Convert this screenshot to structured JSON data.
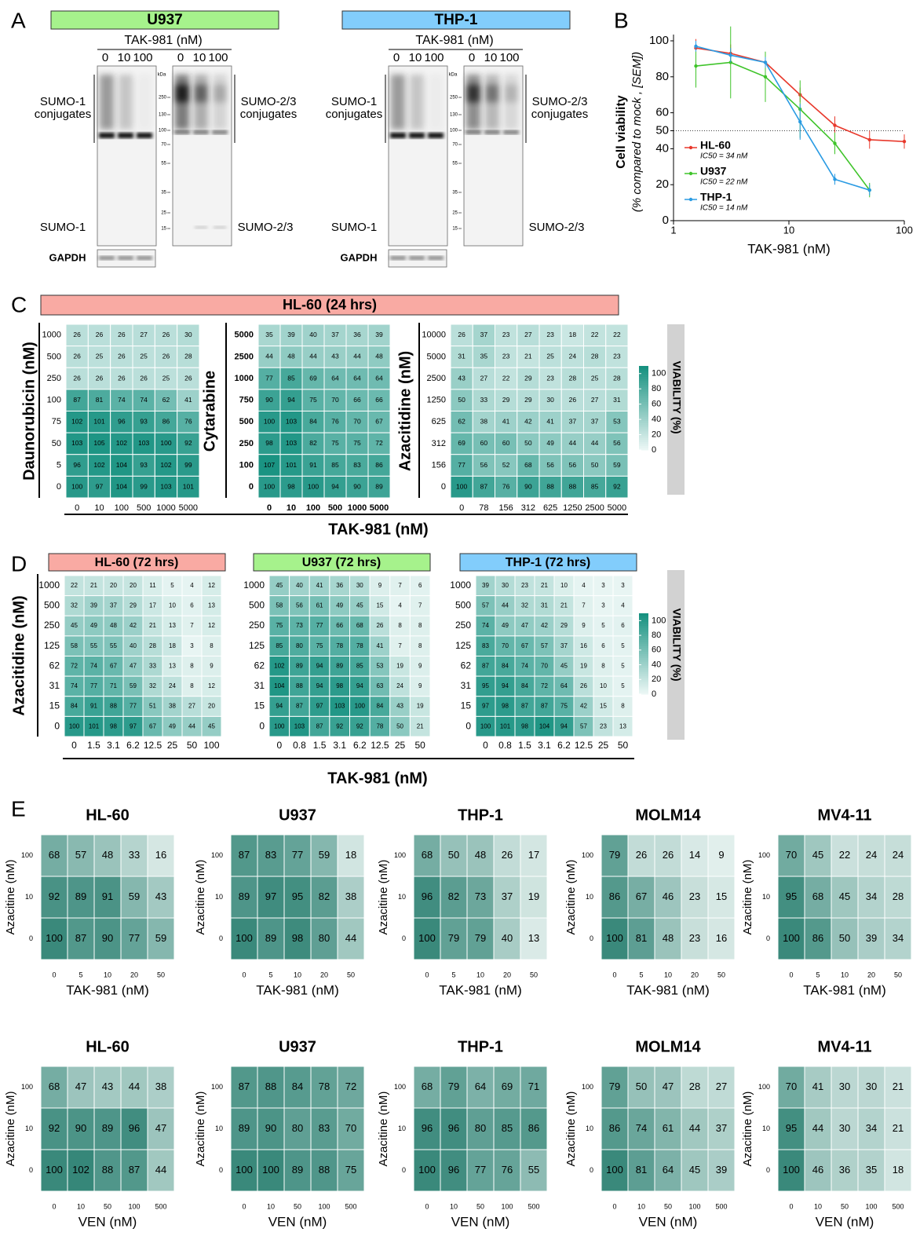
{
  "panel_labels": [
    "A",
    "B",
    "C",
    "D",
    "E"
  ],
  "blots": {
    "treatment": "TAK-981 (nM)",
    "lanes": [
      "0",
      "10",
      "100"
    ],
    "kda_unit": "kDa",
    "kda_markers": [
      "250",
      "130",
      "100",
      "70",
      "55",
      "35",
      "25",
      "15"
    ],
    "sumo1_conjugates": [
      "SUMO-1",
      "conjugates"
    ],
    "sumo23_conjugates": [
      "SUMO-2/3",
      "conjugates"
    ],
    "sumo1": "SUMO-1",
    "sumo23": "SUMO-2/3",
    "loading_control": "GAPDH",
    "cell_lines": [
      {
        "name": "U937",
        "color": "#a6f28c"
      },
      {
        "name": "THP-1",
        "color": "#82cdfc"
      }
    ]
  },
  "panel_c": {
    "title": "HL-60 (24 hrs)",
    "color": "#f9aaa3",
    "xlabel": "TAK-981 (nM)",
    "colorbar": {
      "label": "VIABILITY (%)",
      "range": [
        0,
        110
      ],
      "ticks": [
        0,
        20,
        40,
        60,
        80,
        100
      ],
      "colors": [
        "#eef8f6",
        "#14907f"
      ]
    }
  },
  "panel_d": {
    "ylabel": "Azacitidine (nM)",
    "xlabel": "TAK-981 (nM)",
    "colorbar": {
      "label": "VIABILITY (%)",
      "range": [
        0,
        110
      ],
      "ticks": [
        0,
        20,
        40,
        60,
        80,
        100
      ],
      "colors": [
        "#eef8f6",
        "#14907f"
      ]
    }
  },
  "panel_e": {
    "range": [
      0,
      100
    ],
    "colors": [
      "#f2f9f7",
      "#3a897b"
    ]
  },
  "chart_data": [
    {
      "type": "line",
      "xlabel": "TAK-981 (nM)",
      "ylabel": [
        "Cell viability",
        "(% compared to mock , [SEM])"
      ],
      "x": [
        1.5625,
        3.125,
        6.25,
        12.5,
        25,
        50,
        100
      ],
      "xscale": "log",
      "xlim": [
        1,
        100
      ],
      "xticks": [
        1,
        10,
        100
      ],
      "ylim": [
        0,
        100
      ],
      "yticks": [
        0,
        20,
        40,
        50,
        60,
        80,
        100
      ],
      "hline": 50,
      "series": [
        {
          "name": "HL-60",
          "color": "#e8382b",
          "ic50_label": "IC50 = 34 nM",
          "values": [
            96,
            93,
            88,
            70,
            53,
            45,
            44
          ],
          "errors": [
            5,
            5,
            5,
            4,
            5,
            5,
            4
          ]
        },
        {
          "name": "U937",
          "color": "#3fc42a",
          "ic50_label": "IC50 = 22 nM",
          "values": [
            86,
            88,
            80,
            62,
            43,
            17,
            null
          ],
          "errors": [
            12,
            20,
            14,
            16,
            6,
            4,
            null
          ]
        },
        {
          "name": "THP-1",
          "color": "#2a9be3",
          "ic50_label": "IC50 = 14 nM",
          "values": [
            97,
            92,
            88,
            55,
            23,
            17,
            null
          ],
          "errors": [
            3,
            4,
            3,
            10,
            3,
            3,
            null
          ]
        }
      ]
    },
    {
      "type": "heatmap",
      "ylabel": "Daunorubicin (nM)",
      "rows": [
        "1000",
        "500",
        "250",
        "100",
        "75",
        "50",
        "5",
        "0"
      ],
      "columns": [
        "0",
        "10",
        "100",
        "500",
        "1000",
        "5000"
      ],
      "values": [
        [
          26,
          26,
          26,
          27,
          26,
          30
        ],
        [
          26,
          25,
          26,
          25,
          26,
          28
        ],
        [
          26,
          26,
          26,
          26,
          25,
          26
        ],
        [
          87,
          81,
          74,
          74,
          62,
          41
        ],
        [
          102,
          101,
          96,
          93,
          86,
          76
        ],
        [
          103,
          105,
          102,
          103,
          100,
          92
        ],
        [
          96,
          102,
          104,
          93,
          102,
          99
        ],
        [
          100,
          97,
          104,
          99,
          103,
          101
        ]
      ]
    },
    {
      "type": "heatmap",
      "ylabel": "Cytarabine",
      "rows": [
        "5000",
        "2500",
        "1000",
        "750",
        "500",
        "250",
        "100",
        "0"
      ],
      "columns": [
        "0",
        "10",
        "100",
        "500",
        "1000",
        "5000"
      ],
      "values": [
        [
          35,
          39,
          40,
          37,
          36,
          39
        ],
        [
          44,
          48,
          44,
          43,
          44,
          48
        ],
        [
          77,
          85,
          69,
          64,
          64,
          64
        ],
        [
          90,
          94,
          75,
          70,
          66,
          66
        ],
        [
          100,
          103,
          84,
          76,
          70,
          67
        ],
        [
          98,
          103,
          82,
          75,
          75,
          72
        ],
        [
          107,
          101,
          91,
          85,
          83,
          86
        ],
        [
          100,
          98,
          100,
          94,
          90,
          89
        ]
      ]
    },
    {
      "type": "heatmap",
      "ylabel": "Azacitidine (nM)",
      "rows": [
        "10000",
        "5000",
        "2500",
        "1250",
        "625",
        "312",
        "156",
        "0"
      ],
      "columns": [
        "0",
        "78",
        "156",
        "312",
        "625",
        "1250",
        "2500",
        "5000"
      ],
      "values": [
        [
          26,
          37,
          23,
          27,
          23,
          18,
          22,
          22
        ],
        [
          31,
          35,
          23,
          21,
          25,
          24,
          28,
          23
        ],
        [
          43,
          27,
          22,
          29,
          23,
          28,
          25,
          28
        ],
        [
          50,
          33,
          29,
          29,
          30,
          26,
          27,
          31
        ],
        [
          62,
          38,
          41,
          42,
          41,
          37,
          37,
          53
        ],
        [
          69,
          60,
          60,
          50,
          49,
          44,
          44,
          56
        ],
        [
          77,
          56,
          52,
          68,
          56,
          56,
          50,
          59
        ],
        [
          100,
          87,
          76,
          90,
          88,
          88,
          85,
          92
        ]
      ]
    },
    {
      "type": "heatmap",
      "title": "HL-60 (72 hrs)",
      "header_color": "#f9aaa3",
      "rows": [
        "1000",
        "500",
        "250",
        "125",
        "62",
        "31",
        "15",
        "0"
      ],
      "columns": [
        "0",
        "1.5",
        "3.1",
        "6.2",
        "12.5",
        "25",
        "50",
        "100"
      ],
      "values": [
        [
          22,
          21,
          20,
          20,
          11,
          5,
          4,
          12
        ],
        [
          32,
          39,
          37,
          29,
          17,
          10,
          6,
          13
        ],
        [
          45,
          49,
          48,
          42,
          21,
          13,
          7,
          12
        ],
        [
          58,
          55,
          55,
          40,
          28,
          18,
          3,
          8
        ],
        [
          72,
          74,
          67,
          47,
          33,
          13,
          8,
          9
        ],
        [
          74,
          77,
          71,
          59,
          32,
          24,
          8,
          12
        ],
        [
          84,
          91,
          88,
          77,
          51,
          38,
          27,
          20
        ],
        [
          100,
          101,
          98,
          97,
          67,
          49,
          44,
          45
        ]
      ]
    },
    {
      "type": "heatmap",
      "title": "U937 (72 hrs)",
      "header_color": "#a6f28c",
      "rows": [
        "1000",
        "500",
        "250",
        "125",
        "62",
        "31",
        "15",
        "0"
      ],
      "columns": [
        "0",
        "0.8",
        "1.5",
        "3.1",
        "6.2",
        "12.5",
        "25",
        "50"
      ],
      "values": [
        [
          45,
          40,
          41,
          36,
          30,
          9,
          7,
          6
        ],
        [
          58,
          56,
          61,
          49,
          45,
          15,
          4,
          7
        ],
        [
          75,
          73,
          77,
          66,
          68,
          26,
          8,
          8
        ],
        [
          85,
          80,
          75,
          78,
          78,
          41,
          7,
          8
        ],
        [
          102,
          89,
          94,
          89,
          85,
          53,
          19,
          9
        ],
        [
          104,
          88,
          94,
          98,
          94,
          63,
          24,
          9
        ],
        [
          94,
          87,
          97,
          103,
          100,
          84,
          43,
          19
        ],
        [
          100,
          103,
          87,
          92,
          92,
          78,
          50,
          21
        ]
      ]
    },
    {
      "type": "heatmap",
      "title": "THP-1 (72 hrs)",
      "header_color": "#82cdfc",
      "rows": [
        "1000",
        "500",
        "250",
        "125",
        "62",
        "31",
        "15",
        "0"
      ],
      "columns": [
        "0",
        "0.8",
        "1.5",
        "3.1",
        "6.2",
        "12.5",
        "25",
        "50"
      ],
      "values": [
        [
          39,
          30,
          23,
          21,
          10,
          4,
          3,
          3
        ],
        [
          57,
          44,
          32,
          31,
          21,
          7,
          3,
          4
        ],
        [
          74,
          49,
          47,
          42,
          29,
          9,
          5,
          6
        ],
        [
          83,
          70,
          67,
          57,
          37,
          16,
          6,
          5
        ],
        [
          87,
          84,
          74,
          70,
          45,
          19,
          8,
          5
        ],
        [
          95,
          94,
          84,
          72,
          64,
          26,
          10,
          5
        ],
        [
          97,
          98,
          87,
          87,
          75,
          42,
          15,
          8
        ],
        [
          100,
          101,
          98,
          104,
          94,
          57,
          23,
          13
        ]
      ]
    },
    {
      "type": "heatmap",
      "title": "HL-60",
      "ylabel": "Azacitine (nM)",
      "xlabel": "TAK-981 (nM)",
      "rows": [
        "100",
        "10",
        "0"
      ],
      "columns": [
        "0",
        "5",
        "10",
        "20",
        "50"
      ],
      "values": [
        [
          68,
          57,
          48,
          33,
          16
        ],
        [
          92,
          89,
          91,
          59,
          43
        ],
        [
          100,
          87,
          90,
          77,
          59
        ]
      ]
    },
    {
      "type": "heatmap",
      "title": "U937",
      "ylabel": "Azacitine (nM)",
      "xlabel": "TAK-981 (nM)",
      "rows": [
        "100",
        "10",
        "0"
      ],
      "columns": [
        "0",
        "5",
        "10",
        "20",
        "50"
      ],
      "values": [
        [
          87,
          83,
          77,
          59,
          18
        ],
        [
          89,
          97,
          95,
          82,
          38
        ],
        [
          100,
          89,
          98,
          80,
          44
        ]
      ]
    },
    {
      "type": "heatmap",
      "title": "THP-1",
      "ylabel": "Azacitine (nM)",
      "xlabel": "TAK-981 (nM)",
      "rows": [
        "100",
        "10",
        "0"
      ],
      "columns": [
        "0",
        "5",
        "10",
        "20",
        "50"
      ],
      "values": [
        [
          68,
          50,
          48,
          26,
          17
        ],
        [
          96,
          82,
          73,
          37,
          19
        ],
        [
          100,
          79,
          79,
          40,
          13
        ]
      ]
    },
    {
      "type": "heatmap",
      "title": "MOLM14",
      "ylabel": "Azacitine (nM)",
      "xlabel": "TAK-981 (nM)",
      "rows": [
        "100",
        "10",
        "0"
      ],
      "columns": [
        "0",
        "5",
        "10",
        "20",
        "50"
      ],
      "values": [
        [
          79,
          26,
          26,
          14,
          9
        ],
        [
          86,
          67,
          46,
          23,
          15
        ],
        [
          100,
          81,
          48,
          23,
          16
        ]
      ]
    },
    {
      "type": "heatmap",
      "title": "MV4-11",
      "ylabel": "Azacitine (nM)",
      "xlabel": "TAK-981 (nM)",
      "rows": [
        "100",
        "10",
        "0"
      ],
      "columns": [
        "0",
        "5",
        "10",
        "20",
        "50"
      ],
      "values": [
        [
          70,
          45,
          22,
          24,
          24
        ],
        [
          95,
          68,
          45,
          34,
          28
        ],
        [
          100,
          86,
          50,
          39,
          34
        ]
      ]
    },
    {
      "type": "heatmap",
      "title": "HL-60",
      "ylabel": "Azacitine (nM)",
      "xlabel": "VEN (nM)",
      "rows": [
        "100",
        "10",
        "0"
      ],
      "columns": [
        "0",
        "10",
        "50",
        "100",
        "500"
      ],
      "values": [
        [
          68,
          47,
          43,
          44,
          38
        ],
        [
          92,
          90,
          89,
          96,
          47
        ],
        [
          100,
          102,
          88,
          87,
          44
        ]
      ]
    },
    {
      "type": "heatmap",
      "title": "U937",
      "ylabel": "Azacitine (nM)",
      "xlabel": "VEN (nM)",
      "rows": [
        "100",
        "10",
        "0"
      ],
      "columns": [
        "0",
        "10",
        "50",
        "100",
        "500"
      ],
      "values": [
        [
          87,
          88,
          84,
          78,
          72
        ],
        [
          89,
          90,
          80,
          83,
          70
        ],
        [
          100,
          100,
          89,
          88,
          75
        ]
      ]
    },
    {
      "type": "heatmap",
      "title": "THP-1",
      "ylabel": "Azacitine (nM)",
      "xlabel": "VEN (nM)",
      "rows": [
        "100",
        "10",
        "0"
      ],
      "columns": [
        "0",
        "10",
        "50",
        "100",
        "500"
      ],
      "values": [
        [
          68,
          79,
          64,
          69,
          71
        ],
        [
          96,
          96,
          80,
          85,
          86
        ],
        [
          100,
          96,
          77,
          76,
          55
        ]
      ]
    },
    {
      "type": "heatmap",
      "title": "MOLM14",
      "ylabel": "Azacitine (nM)",
      "xlabel": "VEN (nM)",
      "rows": [
        "100",
        "10",
        "0"
      ],
      "columns": [
        "0",
        "10",
        "50",
        "100",
        "500"
      ],
      "values": [
        [
          79,
          50,
          47,
          28,
          27
        ],
        [
          86,
          74,
          61,
          44,
          37
        ],
        [
          100,
          81,
          64,
          45,
          39
        ]
      ]
    },
    {
      "type": "heatmap",
      "title": "MV4-11",
      "ylabel": "Azacitine (nM)",
      "xlabel": "VEN (nM)",
      "rows": [
        "100",
        "10",
        "0"
      ],
      "columns": [
        "0",
        "10",
        "50",
        "100",
        "500"
      ],
      "values": [
        [
          70,
          41,
          30,
          30,
          21
        ],
        [
          95,
          44,
          30,
          34,
          21
        ],
        [
          100,
          46,
          36,
          35,
          18
        ]
      ]
    }
  ]
}
